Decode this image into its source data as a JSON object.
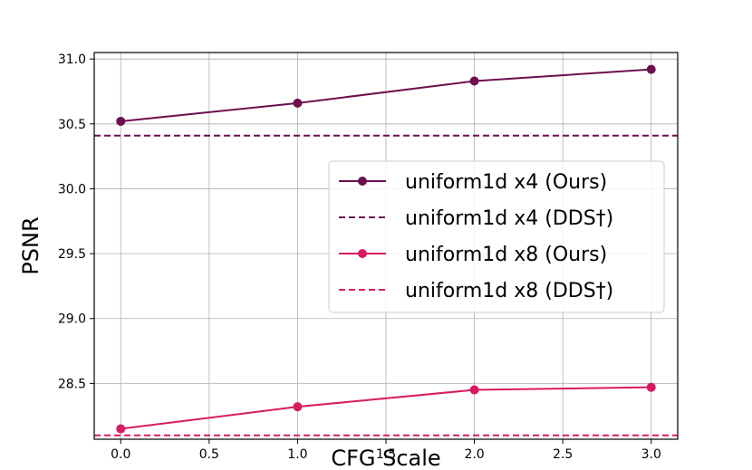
{
  "chart_data": {
    "type": "line",
    "xlabel": "CFG Scale",
    "ylabel": "PSNR",
    "xlim": [
      -0.15,
      3.15
    ],
    "ylim": [
      28.07,
      31.05
    ],
    "xticks": [
      "0.0",
      "0.5",
      "1.0",
      "1.5",
      "2.0",
      "2.5",
      "3.0"
    ],
    "yticks": [
      "28.5",
      "29.0",
      "29.5",
      "30.0",
      "30.5",
      "31.0"
    ],
    "grid": true,
    "legend_position": "center-right",
    "series": [
      {
        "name": "uniform1d x4 (Ours)",
        "style": "solid-marker",
        "color": "#6b0f4f",
        "x": [
          0,
          1,
          2,
          3
        ],
        "y": [
          30.52,
          30.66,
          30.83,
          30.92
        ]
      },
      {
        "name": "uniform1d x4 (DDS†)",
        "style": "dashed",
        "color": "#6b0f4f",
        "y_const": 30.41
      },
      {
        "name": "uniform1d x8 (Ours)",
        "style": "solid-marker",
        "color": "#d81b60",
        "x": [
          0,
          1,
          2,
          3
        ],
        "y": [
          28.15,
          28.32,
          28.45,
          28.47
        ]
      },
      {
        "name": "uniform1d x8 (DDS†)",
        "style": "dashed",
        "color": "#d81b60",
        "y_const": 28.1
      }
    ]
  }
}
